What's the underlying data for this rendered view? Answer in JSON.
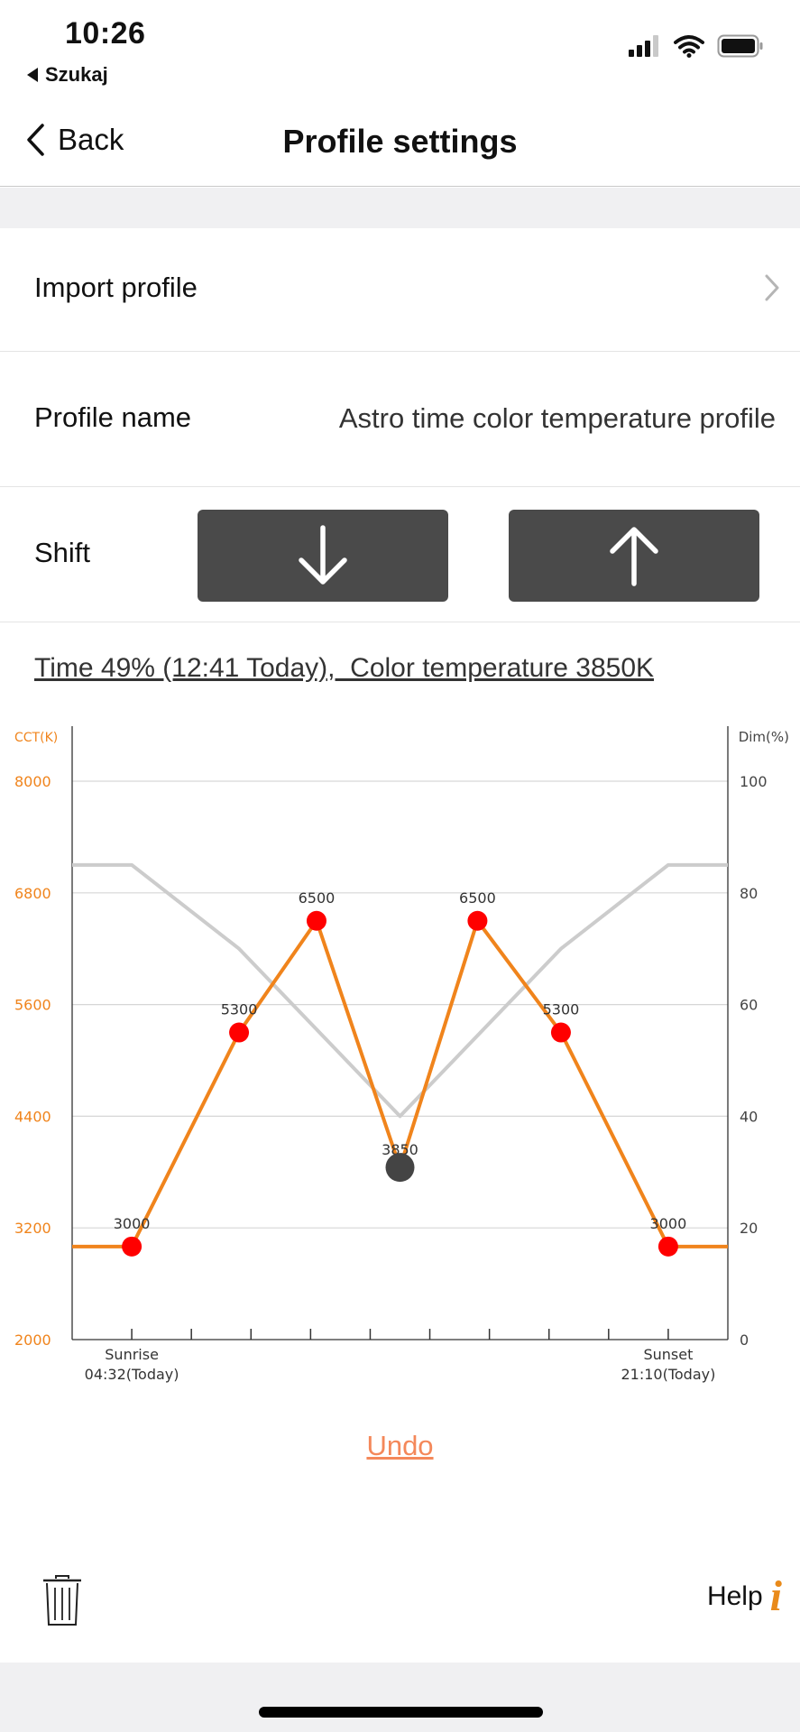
{
  "status_bar": {
    "time": "10:26",
    "back_app": "Szukaj"
  },
  "nav": {
    "back_label": "Back",
    "title": "Profile settings"
  },
  "rows": {
    "import_label": "Import profile",
    "name_label": "Profile name",
    "name_value": "Astro time color temperature profile",
    "shift_label": "Shift"
  },
  "info_line": "Time 49% (12:41 Today),  Color temperature 3850K",
  "chart_data": {
    "type": "line",
    "left_axis_label": "CCT(K)",
    "right_axis_label": "Dim(%)",
    "left_ticks": [
      2000,
      3200,
      4400,
      5600,
      6800,
      8000
    ],
    "right_ticks": [
      0,
      20,
      40,
      60,
      80,
      100
    ],
    "ylim_left": [
      2000,
      8000
    ],
    "ylim_right": [
      0,
      100
    ],
    "x_range": [
      -1,
      10
    ],
    "x_ticks": [
      0,
      1,
      2,
      3,
      4,
      5,
      6,
      7,
      8,
      9
    ],
    "x_labels": [
      {
        "x": 0,
        "line1": "Sunrise",
        "line2": "04:32(Today)"
      },
      {
        "x": 9,
        "line1": "Sunset",
        "line2": "21:10(Today)"
      }
    ],
    "series": [
      {
        "unit": "cct",
        "color": "#f0841c",
        "points": [
          [
            -1,
            3000
          ],
          [
            0,
            3000
          ],
          [
            1.8,
            5300
          ],
          [
            3.1,
            6500
          ],
          [
            4.5,
            3850
          ],
          [
            5.8,
            6500
          ],
          [
            7.2,
            5300
          ],
          [
            9,
            3000
          ],
          [
            10,
            3000
          ]
        ],
        "markers": [
          {
            "x": 0,
            "y": 3000,
            "label": "3000"
          },
          {
            "x": 1.8,
            "y": 5300,
            "label": "5300"
          },
          {
            "x": 3.1,
            "y": 6500,
            "label": "6500"
          },
          {
            "x": 5.8,
            "y": 6500,
            "label": "6500"
          },
          {
            "x": 7.2,
            "y": 5300,
            "label": "5300"
          },
          {
            "x": 9,
            "y": 3000,
            "label": "3000"
          }
        ],
        "current": {
          "x": 4.5,
          "y": 3850,
          "label": "3850"
        },
        "marker_color": "#ff0000",
        "current_color": "#444444"
      },
      {
        "unit": "dim",
        "color": "#cccccc",
        "points": [
          [
            -1,
            85
          ],
          [
            0,
            85
          ],
          [
            1.8,
            70
          ],
          [
            4.5,
            40
          ],
          [
            7.2,
            70
          ],
          [
            9,
            85
          ],
          [
            10,
            85
          ]
        ]
      }
    ],
    "grid": true
  },
  "undo_label": "Undo",
  "help_label": "Help",
  "help_icon_glyph": "i",
  "colors": {
    "accent_orange": "#f0841c",
    "undo": "#f4885a",
    "button_dark": "#4a4a4a",
    "marker_red": "#ff0000"
  }
}
